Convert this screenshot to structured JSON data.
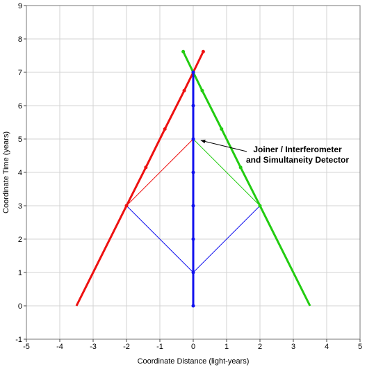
{
  "chart_data": {
    "type": "line",
    "title": "",
    "xlabel": "Coordinate Distance (light-years)",
    "ylabel": "Coordinate Time (years)",
    "xlim": [
      -5,
      5
    ],
    "ylim": [
      -1,
      9
    ],
    "xticks": [
      "-5",
      "-4",
      "-3",
      "-2",
      "-1",
      "0",
      "1",
      "2",
      "3",
      "4",
      "5"
    ],
    "yticks": [
      "-1",
      "0",
      "1",
      "2",
      "3",
      "4",
      "5",
      "6",
      "7",
      "8",
      "9"
    ],
    "grid": true,
    "series": [
      {
        "color": "#ee1111",
        "style": "thick",
        "points": [
          [
            -3.5,
            0
          ],
          [
            -2,
            3
          ],
          [
            -1.42,
            4.15
          ],
          [
            -0.85,
            5.3
          ],
          [
            -0.27,
            6.45
          ],
          [
            0,
            7
          ],
          [
            0.3,
            7.62
          ]
        ],
        "markers": [
          [
            -2,
            3
          ],
          [
            -1.42,
            4.15
          ],
          [
            -0.85,
            5.3
          ],
          [
            -0.27,
            6.45
          ],
          [
            0,
            7
          ],
          [
            0.3,
            7.62
          ]
        ]
      },
      {
        "color": "#22cc11",
        "style": "thick",
        "points": [
          [
            3.5,
            0
          ],
          [
            2,
            3
          ],
          [
            1.42,
            4.15
          ],
          [
            0.85,
            5.3
          ],
          [
            0.27,
            6.45
          ],
          [
            0,
            7
          ],
          [
            -0.3,
            7.62
          ]
        ],
        "markers": [
          [
            2,
            3
          ],
          [
            1.42,
            4.15
          ],
          [
            0.85,
            5.3
          ],
          [
            0.27,
            6.45
          ],
          [
            0,
            7
          ],
          [
            -0.3,
            7.62
          ]
        ]
      },
      {
        "color": "#1111ee",
        "style": "thick",
        "points": [
          [
            0,
            0
          ],
          [
            0,
            7
          ]
        ],
        "markers": [
          [
            0,
            0
          ],
          [
            0,
            1
          ],
          [
            0,
            2
          ],
          [
            0,
            3
          ],
          [
            0,
            4
          ],
          [
            0,
            5
          ],
          [
            0,
            6
          ],
          [
            0,
            7
          ]
        ]
      },
      {
        "color": "#1111ee",
        "style": "thin",
        "points": [
          [
            -2,
            3
          ],
          [
            0,
            1
          ],
          [
            2,
            3
          ]
        ],
        "markers": []
      },
      {
        "color": "#ee1111",
        "style": "thin",
        "points": [
          [
            -2,
            3
          ],
          [
            0,
            5
          ]
        ],
        "markers": []
      },
      {
        "color": "#22cc11",
        "style": "thin",
        "points": [
          [
            2,
            3
          ],
          [
            0,
            5
          ]
        ],
        "markers": []
      }
    ],
    "annotation": {
      "lines": [
        "Joiner / Interferometer",
        "and Simultaneity Detector"
      ],
      "target": [
        0.1,
        5
      ]
    }
  }
}
